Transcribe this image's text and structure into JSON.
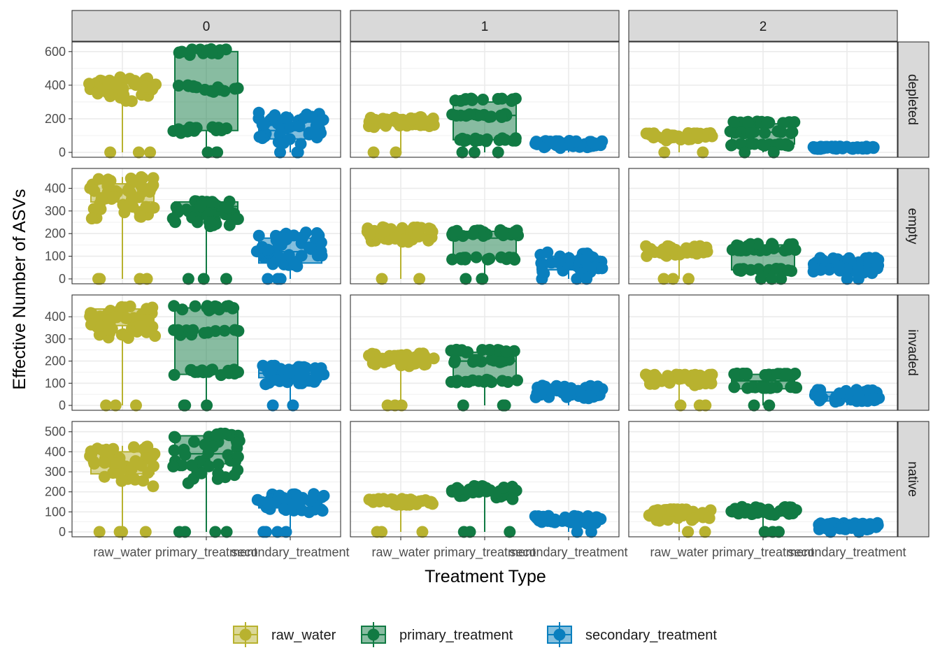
{
  "chart_data": {
    "type": "boxplot",
    "xlabel": "Treatment Type",
    "ylabel": "Effective Number of ASVs",
    "col_facets": [
      "0",
      "1",
      "2"
    ],
    "row_facets": [
      "depleted",
      "empty",
      "invaded",
      "native"
    ],
    "categories": [
      "raw_water",
      "primary_treatment",
      "secondary_treatment"
    ],
    "colors": {
      "raw_water": "#B8B22F",
      "primary_treatment": "#117A43",
      "secondary_treatment": "#0A7FBE",
      "strip_bg": "#D9D9D9",
      "grid": "#EBEBEB"
    },
    "grid": true,
    "legend_position": "bottom",
    "legend": [
      {
        "label": "raw_water",
        "color": "#B8B22F"
      },
      {
        "label": "primary_treatment",
        "color": "#117A43"
      },
      {
        "label": "secondary_treatment",
        "color": "#0A7FBE"
      }
    ],
    "rows": [
      {
        "name": "depleted",
        "ylim": [
          0,
          620
        ],
        "yticks": [
          0,
          200,
          400,
          600
        ],
        "panels": [
          [
            {
              "band": [
                300,
                450
              ],
              "min": 0,
              "q1": 380,
              "median": 410,
              "q3": 430,
              "max": 450,
              "zeros": 3
            },
            {
              "band": [
                120,
                620
              ],
              "min": 0,
              "q1": 130,
              "median": 380,
              "q3": 600,
              "max": 620,
              "zeros": 3,
              "clusters": [
                130,
                380,
                600
              ]
            },
            {
              "band": [
                40,
                240
              ],
              "min": 0,
              "q1": 80,
              "median": 130,
              "q3": 180,
              "max": 240,
              "zeros": 3
            }
          ],
          [
            {
              "band": [
                150,
                210
              ],
              "min": 0,
              "q1": 165,
              "median": 180,
              "q3": 195,
              "max": 210,
              "zeros": 2
            },
            {
              "band": [
                70,
                320
              ],
              "min": 0,
              "q1": 75,
              "median": 220,
              "q3": 300,
              "max": 320,
              "zeros": 3,
              "clusters": [
                75,
                220,
                315
              ]
            },
            {
              "band": [
                25,
                70
              ],
              "min": 0,
              "q1": 35,
              "median": 45,
              "q3": 60,
              "max": 70,
              "zeros": 0
            }
          ],
          [
            {
              "band": [
                70,
                115
              ],
              "min": 0,
              "q1": 80,
              "median": 95,
              "q3": 105,
              "max": 115,
              "zeros": 2
            },
            {
              "band": [
                35,
                190
              ],
              "min": 0,
              "q1": 50,
              "median": 120,
              "q3": 170,
              "max": 190,
              "zeros": 2,
              "clusters": [
                45,
                120,
                180
              ]
            },
            {
              "band": [
                20,
                35
              ],
              "min": 15,
              "q1": 22,
              "median": 28,
              "q3": 32,
              "max": 35,
              "zeros": 0
            }
          ]
        ]
      },
      {
        "name": "empty",
        "ylim": [
          0,
          460
        ],
        "yticks": [
          0,
          100,
          200,
          300,
          400
        ],
        "panels": [
          [
            {
              "band": [
                260,
                450
              ],
              "min": 0,
              "q1": 340,
              "median": 380,
              "q3": 420,
              "max": 450,
              "zeros": 4
            },
            {
              "band": [
                230,
                350
              ],
              "min": 0,
              "q1": 290,
              "median": 320,
              "q3": 340,
              "max": 350,
              "zeros": 3
            },
            {
              "band": [
                40,
                210
              ],
              "min": 0,
              "q1": 70,
              "median": 120,
              "q3": 180,
              "max": 210,
              "zeros": 3
            }
          ],
          [
            {
              "band": [
                160,
                230
              ],
              "min": 0,
              "q1": 180,
              "median": 200,
              "q3": 215,
              "max": 230,
              "zeros": 2
            },
            {
              "band": [
                80,
                220
              ],
              "min": 0,
              "q1": 90,
              "median": 180,
              "q3": 210,
              "max": 220,
              "zeros": 3,
              "clusters": [
                90,
                195,
                210
              ]
            },
            {
              "band": [
                20,
                120
              ],
              "min": 0,
              "q1": 40,
              "median": 70,
              "q3": 100,
              "max": 120,
              "zeros": 3
            }
          ],
          [
            {
              "band": [
                100,
                145
              ],
              "min": 0,
              "q1": 110,
              "median": 125,
              "q3": 135,
              "max": 145,
              "zeros": 3
            },
            {
              "band": [
                30,
                160
              ],
              "min": 0,
              "q1": 40,
              "median": 120,
              "q3": 150,
              "max": 160,
              "zeros": 3,
              "clusters": [
                40,
                130,
                150
              ]
            },
            {
              "band": [
                20,
                95
              ],
              "min": 0,
              "q1": 40,
              "median": 60,
              "q3": 80,
              "max": 95,
              "zeros": 2
            }
          ]
        ]
      },
      {
        "name": "invaded",
        "ylim": [
          0,
          470
        ],
        "yticks": [
          0,
          100,
          200,
          300,
          400
        ],
        "panels": [
          [
            {
              "band": [
                300,
                450
              ],
              "min": 0,
              "q1": 360,
              "median": 410,
              "q3": 435,
              "max": 450,
              "zeros": 3
            },
            {
              "band": [
                120,
                460
              ],
              "min": 0,
              "q1": 140,
              "median": 330,
              "q3": 440,
              "max": 460,
              "zeros": 3,
              "clusters": [
                150,
                330,
                440
              ]
            },
            {
              "band": [
                95,
                180
              ],
              "min": 0,
              "q1": 125,
              "median": 145,
              "q3": 165,
              "max": 180,
              "zeros": 2
            }
          ],
          [
            {
              "band": [
                175,
                235
              ],
              "min": 0,
              "q1": 195,
              "median": 215,
              "q3": 225,
              "max": 235,
              "zeros": 3
            },
            {
              "band": [
                100,
                255
              ],
              "min": 0,
              "q1": 110,
              "median": 200,
              "q3": 240,
              "max": 255,
              "zeros": 3,
              "clusters": [
                110,
                200,
                245
              ]
            },
            {
              "band": [
                30,
                90
              ],
              "min": 0,
              "q1": 45,
              "median": 60,
              "q3": 75,
              "max": 90,
              "zeros": 0
            }
          ],
          [
            {
              "band": [
                90,
                140
              ],
              "min": 0,
              "q1": 100,
              "median": 115,
              "q3": 130,
              "max": 140,
              "zeros": 3
            },
            {
              "band": [
                60,
                155
              ],
              "min": 0,
              "q1": 75,
              "median": 110,
              "q3": 140,
              "max": 155,
              "zeros": 2,
              "clusters": [
                80,
                140
              ]
            },
            {
              "band": [
                10,
                75
              ],
              "min": 0,
              "q1": 20,
              "median": 40,
              "q3": 60,
              "max": 75,
              "zeros": 0
            }
          ]
        ]
      },
      {
        "name": "native",
        "ylim": [
          0,
          520
        ],
        "yticks": [
          0,
          100,
          200,
          300,
          400,
          500
        ],
        "panels": [
          [
            {
              "band": [
                220,
                430
              ],
              "min": 0,
              "q1": 290,
              "median": 340,
              "q3": 400,
              "max": 430,
              "zeros": 4
            },
            {
              "band": [
                240,
                500
              ],
              "min": 0,
              "q1": 340,
              "median": 390,
              "q3": 480,
              "max": 500,
              "zeros": 4
            },
            {
              "band": [
                90,
                190
              ],
              "min": 0,
              "q1": 120,
              "median": 145,
              "q3": 170,
              "max": 190,
              "zeros": 4
            }
          ],
          [
            {
              "band": [
                135,
                165
              ],
              "min": 0,
              "q1": 145,
              "median": 155,
              "q3": 160,
              "max": 165,
              "zeros": 3
            },
            {
              "band": [
                160,
                230
              ],
              "min": 0,
              "q1": 180,
              "median": 200,
              "q3": 215,
              "max": 230,
              "zeros": 3
            },
            {
              "band": [
                40,
                80
              ],
              "min": 0,
              "q1": 50,
              "median": 60,
              "q3": 72,
              "max": 80,
              "zeros": 2
            }
          ],
          [
            {
              "band": [
                55,
                115
              ],
              "min": 0,
              "q1": 70,
              "median": 85,
              "q3": 100,
              "max": 115,
              "zeros": 3
            },
            {
              "band": [
                85,
                125
              ],
              "min": 0,
              "q1": 95,
              "median": 105,
              "q3": 115,
              "max": 125,
              "zeros": 3
            },
            {
              "band": [
                10,
                45
              ],
              "min": 0,
              "q1": 20,
              "median": 30,
              "q3": 38,
              "max": 45,
              "zeros": 2
            }
          ]
        ]
      }
    ]
  }
}
